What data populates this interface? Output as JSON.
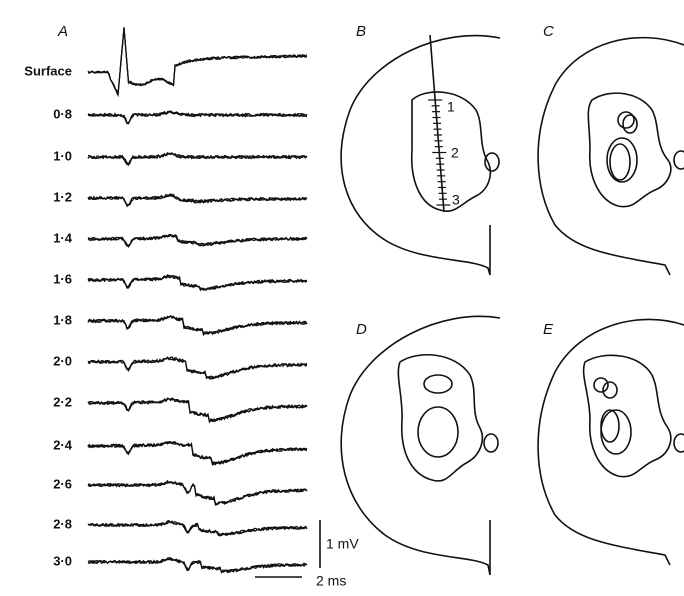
{
  "panel_labels": [
    "A",
    "B",
    "C",
    "D",
    "E"
  ],
  "depth_labels": [
    "Surface",
    "0·8",
    "1·0",
    "1·2",
    "1·4",
    "1·6",
    "1·8",
    "2·0",
    "2·2",
    "2·4",
    "2·6",
    "2·8",
    "3·0"
  ],
  "electrode_marks": [
    "1",
    "2",
    "3"
  ],
  "scale_bars": {
    "voltage": "1 mV",
    "time": "2 ms"
  }
}
